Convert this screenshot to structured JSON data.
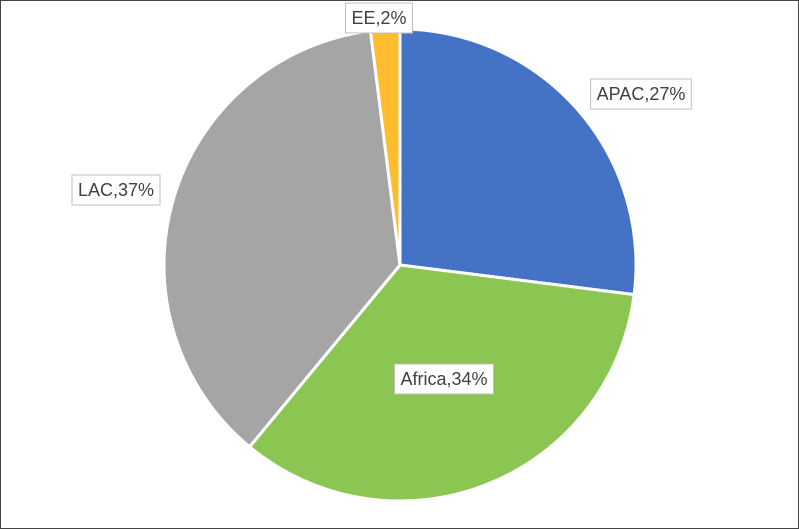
{
  "chart_data": {
    "type": "pie",
    "categories": [
      "APAC",
      "Africa",
      "LAC",
      "EE"
    ],
    "values": [
      27,
      34,
      37,
      2
    ],
    "data_labels": [
      "APAC,27%",
      "Africa,34%",
      "LAC,37%",
      "EE,2%"
    ],
    "colors": [
      "#4472C4",
      "#8BC653",
      "#A5A5A5",
      "#FFBD2D"
    ],
    "legend": false,
    "title": ""
  }
}
